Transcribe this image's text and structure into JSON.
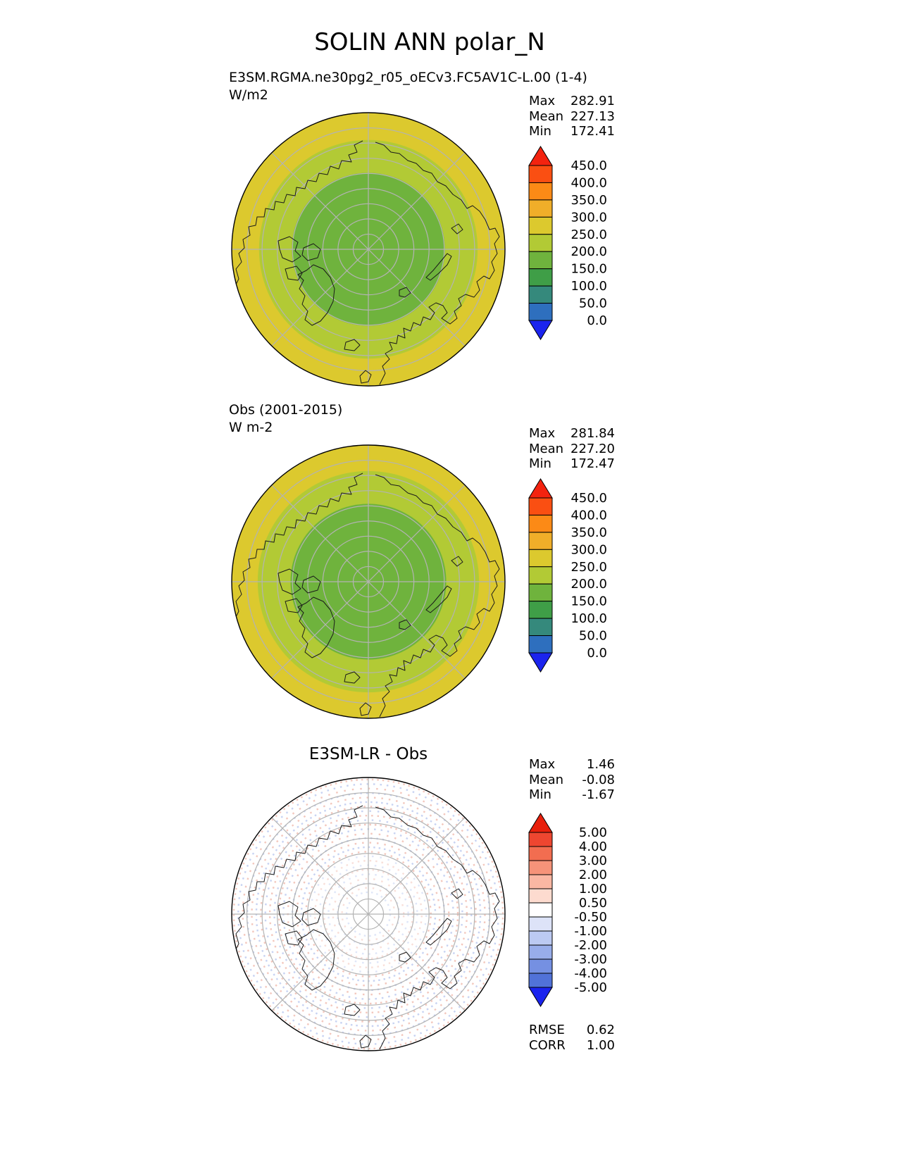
{
  "title": "SOLIN ANN polar_N",
  "panels": [
    {
      "subtitle": "E3SM.RGMA.ne30pg2_r05_oECv3.FC5AV1C-L.00 (1-4)",
      "units": "W/m2",
      "stats": {
        "max_label": "Max",
        "max": "282.91",
        "mean_label": "Mean",
        "mean": "227.13",
        "min_label": "Min",
        "min": "172.41"
      }
    },
    {
      "subtitle": "Obs (2001-2015)",
      "units": "W m-2",
      "stats": {
        "max_label": "Max",
        "max": "281.84",
        "mean_label": "Mean",
        "mean": "227.20",
        "min_label": "Min",
        "min": "172.47"
      }
    },
    {
      "subtitle": "E3SM-LR - Obs",
      "stats": {
        "max_label": "Max",
        "max": "1.46",
        "mean_label": "Mean",
        "mean": "-0.08",
        "min_label": "Min",
        "min": "-1.67"
      },
      "rmse_label": "RMSE",
      "rmse": "0.62",
      "corr_label": "CORR",
      "corr": "1.00"
    }
  ],
  "chart_data": [
    {
      "type": "heatmap",
      "subtype": "north-polar-stereographic-map",
      "title": "E3SM.RGMA.ne30pg2_r05_oECv3.FC5AV1C-L.00 (1-4)",
      "units": "W/m2",
      "stats": {
        "max": 282.91,
        "mean": 227.13,
        "min": 172.41
      },
      "colorbar": {
        "levels": [
          450,
          400,
          350,
          300,
          250,
          200,
          150,
          100,
          50,
          0
        ],
        "labels": [
          "450.0",
          "400.0",
          "350.0",
          "300.0",
          "250.0",
          "200.0",
          "150.0",
          "100.0",
          "50.0",
          "0.0"
        ],
        "colors": [
          "#f3230f",
          "#fa4f12",
          "#fc8a16",
          "#f0ae29",
          "#dcc92e",
          "#b2ca35",
          "#6fb33d",
          "#3f9e47",
          "#35897c",
          "#2e6fbe",
          "#1b24ee"
        ]
      },
      "rings": [
        {
          "r": 1.0,
          "color": "#dcc92e",
          "value_range": "250-300"
        },
        {
          "r": 0.8,
          "color": "#b2ca35",
          "value_range": "200-250"
        },
        {
          "r": 0.56,
          "color": "#6fb33d",
          "value_range": "150-200"
        }
      ],
      "graticule": {
        "circles": 8,
        "spokes": 8
      }
    },
    {
      "type": "heatmap",
      "subtype": "north-polar-stereographic-map",
      "title": "Obs (2001-2015)",
      "units": "W m-2",
      "stats": {
        "max": 281.84,
        "mean": 227.2,
        "min": 172.47
      },
      "colorbar": {
        "levels": [
          450,
          400,
          350,
          300,
          250,
          200,
          150,
          100,
          50,
          0
        ],
        "labels": [
          "450.0",
          "400.0",
          "350.0",
          "300.0",
          "250.0",
          "200.0",
          "150.0",
          "100.0",
          "50.0",
          "0.0"
        ],
        "colors": [
          "#f3230f",
          "#fa4f12",
          "#fc8a16",
          "#f0ae29",
          "#dcc92e",
          "#b2ca35",
          "#6fb33d",
          "#3f9e47",
          "#35897c",
          "#2e6fbe",
          "#1b24ee"
        ]
      },
      "rings": [
        {
          "r": 1.0,
          "color": "#dcc92e",
          "value_range": "250-300"
        },
        {
          "r": 0.81,
          "color": "#b2ca35",
          "value_range": "200-250"
        },
        {
          "r": 0.57,
          "color": "#6fb33d",
          "value_range": "150-200"
        }
      ],
      "graticule": {
        "circles": 8,
        "spokes": 8
      }
    },
    {
      "type": "heatmap",
      "subtype": "north-polar-stereographic-difference-map",
      "title": "E3SM-LR - Obs",
      "stats": {
        "max": 1.46,
        "mean": -0.08,
        "min": -1.67,
        "rmse": 0.62,
        "corr": 1.0
      },
      "colorbar": {
        "levels": [
          5,
          4,
          3,
          2,
          1,
          0.5,
          -0.5,
          -1,
          -2,
          -3,
          -4,
          -5
        ],
        "labels": [
          "5.00",
          "4.00",
          "3.00",
          "2.00",
          "1.00",
          "0.50",
          "-0.50",
          "-1.00",
          "-2.00",
          "-3.00",
          "-4.00",
          "-5.00"
        ],
        "colors": [
          "#e8200c",
          "#ee4630",
          "#f26d50",
          "#f69379",
          "#fab7a3",
          "#fddbcf",
          "#ffffff",
          "#dde3f8",
          "#bccaf2",
          "#98adea",
          "#7590e2",
          "#5172d8",
          "#1b24ee"
        ]
      },
      "rings": [
        {
          "r": 1.0,
          "color": "#ffffff",
          "value_range": "-0.50-0.50"
        }
      ],
      "speckles": true,
      "speckle_colors": [
        "#eba492",
        "#a4b6ea"
      ],
      "graticule": {
        "circles": 8,
        "spokes": 8
      }
    }
  ]
}
